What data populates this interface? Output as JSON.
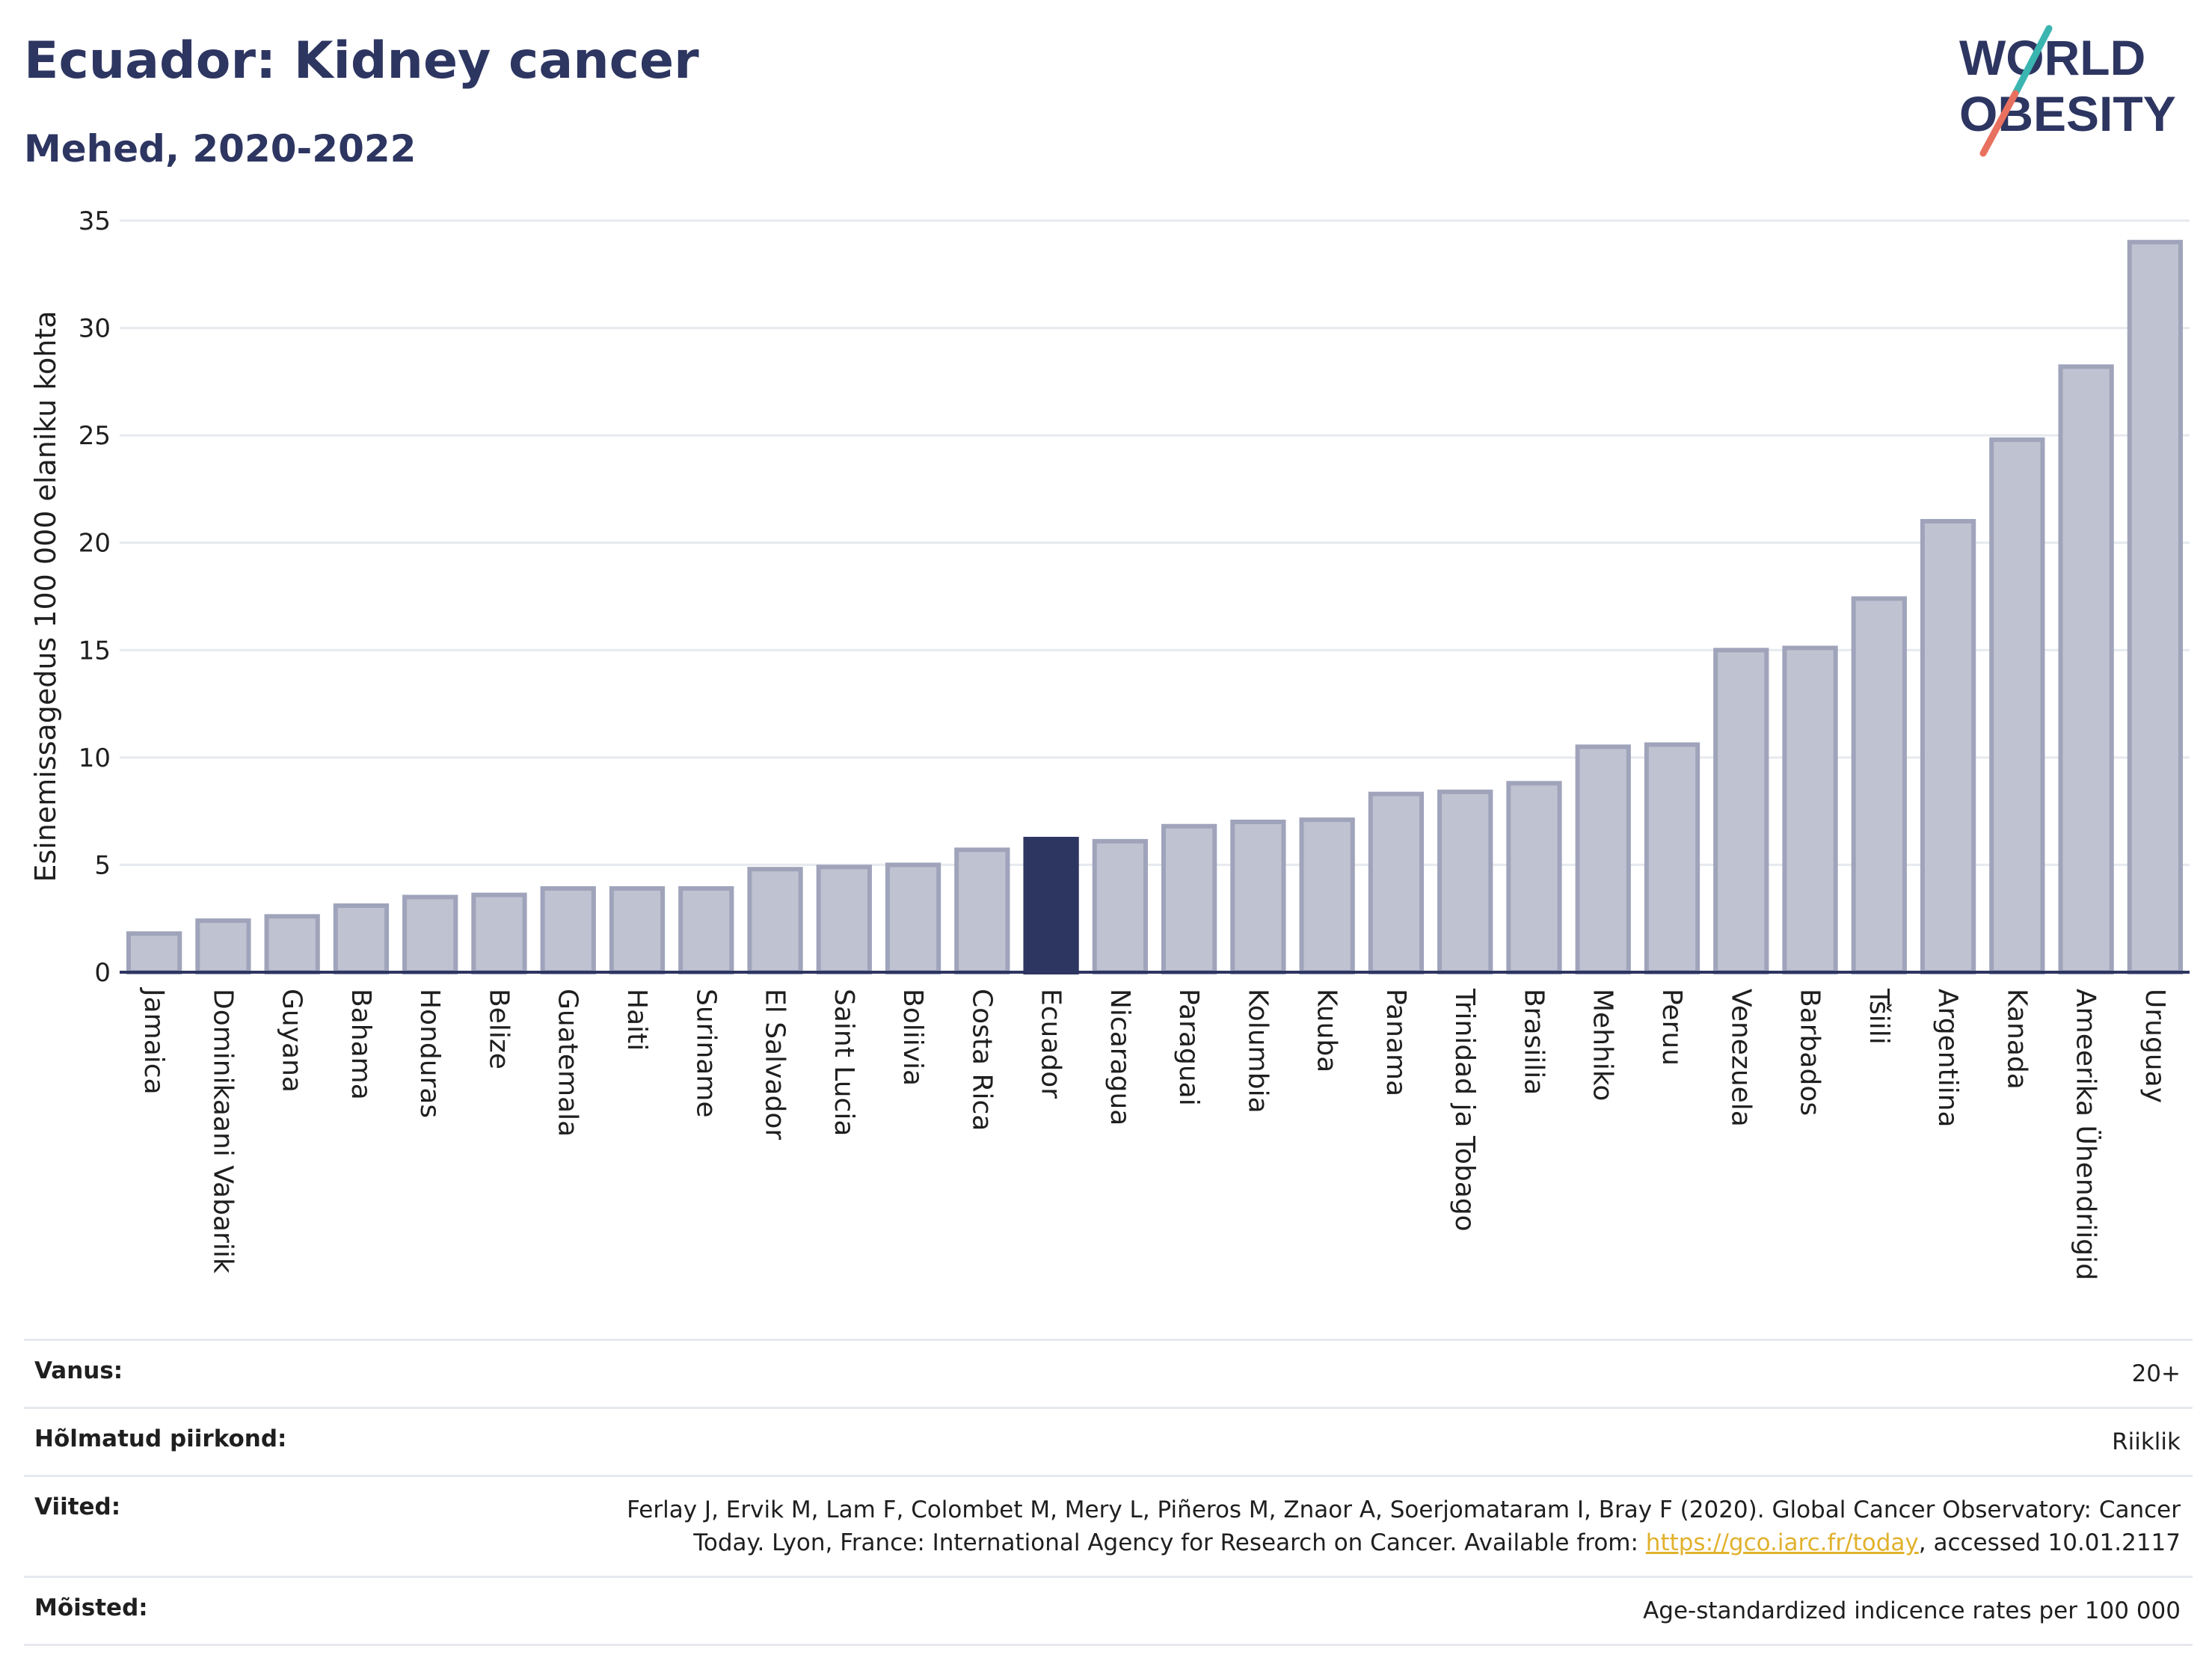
{
  "header": {
    "title": "Ecuador: Kidney cancer",
    "subtitle": "Mehed, 2020-2022"
  },
  "logo": {
    "line1": "WORLD",
    "line2": "OBESITY",
    "accent_colors": [
      "#3ab5b0",
      "#e8705f"
    ]
  },
  "colors": {
    "bar": "#bfc2d0",
    "bar_stroke": "#9fa4bb",
    "highlight": "#2d3561",
    "grid": "#e6e9ee"
  },
  "chart_data": {
    "type": "bar",
    "ylabel": "Esinemissagedus 100 000 elaniku kohta",
    "ylim": [
      0,
      35
    ],
    "yticks": [
      0,
      5,
      10,
      15,
      20,
      25,
      30,
      35
    ],
    "grid": true,
    "highlight": "Ecuador",
    "categories": [
      "Jamaica",
      "Dominikaani Vabariik",
      "Guyana",
      "Bahama",
      "Honduras",
      "Belize",
      "Guatemala",
      "Haiti",
      "Suriname",
      "El Salvador",
      "Saint Lucia",
      "Boliivia",
      "Costa Rica",
      "Ecuador",
      "Nicaragua",
      "Paraguai",
      "Kolumbia",
      "Kuuba",
      "Panama",
      "Trinidad ja Tobago",
      "Brasiilia",
      "Mehhiko",
      "Peruu",
      "Venezuela",
      "Barbados",
      "Tšiili",
      "Argentiina",
      "Kanada",
      "Ameerika Ühendriigid",
      "Uruguay"
    ],
    "values": [
      1.8,
      2.4,
      2.6,
      3.1,
      3.5,
      3.6,
      3.9,
      3.9,
      3.9,
      4.8,
      4.9,
      5.0,
      5.7,
      6.2,
      6.1,
      6.8,
      7.0,
      7.1,
      8.3,
      8.4,
      8.8,
      10.5,
      10.6,
      15.0,
      15.1,
      17.4,
      21.0,
      24.8,
      28.2,
      34.0
    ]
  },
  "info": {
    "age_label": "Vanus:",
    "age_value": "20+",
    "region_label": "Hõlmatud piirkond:",
    "region_value": "Riiklik",
    "refs_label": "Viited:",
    "refs_text": "Ferlay J, Ervik M, Lam F, Colombet M, Mery L, Piñeros M, Znaor A, Soerjomataram I, Bray F (2020). Global Cancer Observatory: Cancer Today. Lyon, France: International Agency for Research on Cancer. Available from: ",
    "refs_link": "https://gco.iarc.fr/today",
    "refs_suffix": ", accessed 10.01.2117",
    "defs_label": "Mõisted:",
    "defs_value": "Age-standardized indicence rates per 100 000"
  }
}
